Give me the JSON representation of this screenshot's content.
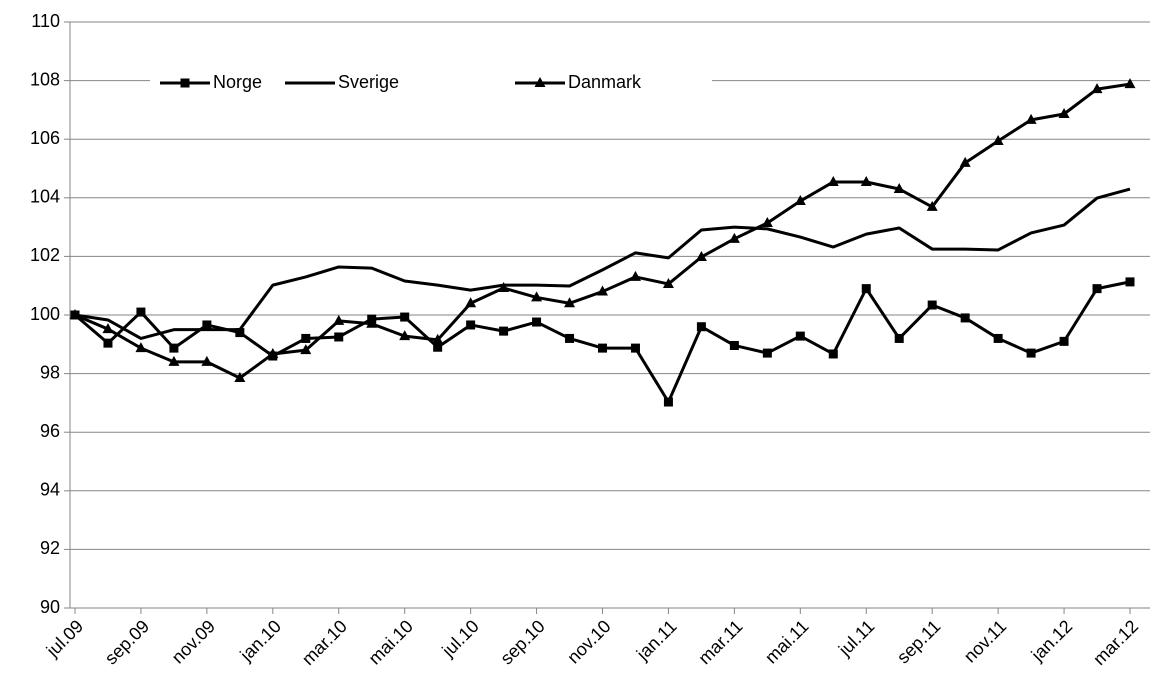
{
  "chart_data": {
    "type": "line",
    "categories": [
      "jul.09",
      null,
      "sep.09",
      null,
      "nov.09",
      null,
      "jan.10",
      null,
      "mar.10",
      null,
      "mai.10",
      null,
      "jul.10",
      null,
      "sep.10",
      null,
      "nov.10",
      null,
      "jan.11",
      null,
      "mar.11",
      null,
      "mai.11",
      null,
      "jul.11",
      null,
      "sep.11",
      null,
      "nov.11",
      null,
      "jan.12",
      null,
      "mar.12"
    ],
    "series": [
      {
        "name": "Norge",
        "color": "#000000",
        "marker": "square",
        "values": [
          100,
          99.04,
          100.1,
          98.87,
          99.66,
          99.4,
          98.6,
          99.2,
          99.25,
          99.86,
          99.93,
          98.9,
          99.66,
          99.45,
          99.76,
          99.2,
          98.87,
          98.87,
          97.03,
          99.6,
          98.96,
          98.7,
          99.28,
          98.67,
          100.9,
          99.2,
          100.34,
          99.9,
          99.2,
          98.7,
          99.1,
          100.9,
          101.13
        ]
      },
      {
        "name": "Sverige",
        "color": "#000000",
        "marker": "none",
        "values": [
          100,
          99.83,
          99.2,
          99.5,
          99.5,
          99.5,
          101.02,
          101.3,
          101.64,
          101.6,
          101.16,
          101.02,
          100.85,
          101.02,
          101.02,
          100.99,
          101.54,
          102.12,
          101.95,
          102.9,
          103,
          102.94,
          102.66,
          102.32,
          102.76,
          102.97,
          102.25,
          102.25,
          102.22,
          102.8,
          103.07,
          103.99,
          104.3
        ]
      },
      {
        "name": "Danmark",
        "color": "#000000",
        "marker": "triangle",
        "values": [
          100,
          99.52,
          98.87,
          98.4,
          98.4,
          97.85,
          98.67,
          98.8,
          99.8,
          99.7,
          99.28,
          99.15,
          100.4,
          100.92,
          100.6,
          100.4,
          100.8,
          101.3,
          101.06,
          101.98,
          102.6,
          103.14,
          103.89,
          104.54,
          104.54,
          104.3,
          103.69,
          105.19,
          105.94,
          106.66,
          106.86,
          107.71,
          107.88
        ]
      }
    ],
    "ylim": [
      90,
      110
    ],
    "yticks": [
      90,
      92,
      94,
      96,
      98,
      100,
      102,
      104,
      106,
      108,
      110
    ],
    "grid": true,
    "legend": "top"
  }
}
